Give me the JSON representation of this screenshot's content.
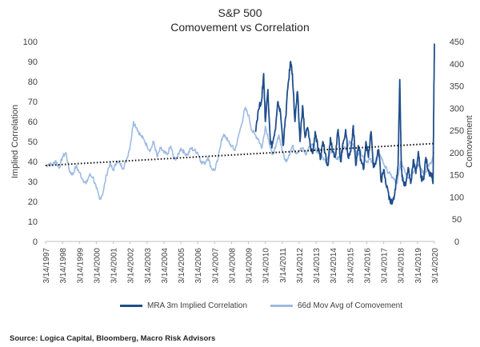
{
  "chart_data": {
    "type": "line",
    "title": "S&P 500",
    "subtitle": "Comovement vs Correlation",
    "ylabel_left": "Implied Correlation",
    "ylabel_right": "Comovement",
    "ylim_left": [
      0,
      100
    ],
    "ylim_right": [
      0,
      450
    ],
    "yticks_left": [
      0,
      10,
      20,
      30,
      40,
      50,
      60,
      70,
      80,
      90,
      100
    ],
    "yticks_right": [
      0,
      50,
      100,
      150,
      200,
      250,
      300,
      350,
      400,
      450
    ],
    "xticks": [
      "3/14/1997",
      "3/14/1998",
      "3/14/1999",
      "3/14/2000",
      "3/14/2001",
      "3/14/2002",
      "3/14/2003",
      "3/14/2004",
      "3/14/2005",
      "3/14/2006",
      "3/14/2007",
      "3/14/2008",
      "3/14/2009",
      "3/14/2010",
      "3/14/2011",
      "3/14/2012",
      "3/14/2013",
      "3/14/2014",
      "3/14/2015",
      "3/14/2016",
      "3/14/2017",
      "3/14/2018",
      "3/14/2019",
      "3/14/2020"
    ],
    "xrange": [
      1997.2,
      2020.2
    ],
    "grid": false,
    "legend_position": "bottom",
    "series": [
      {
        "name": "66d Mov Avg of Comovement",
        "axis": "right",
        "color": "#9dbbe3",
        "x": [
          1997.2,
          1997.4,
          1997.6,
          1997.8,
          1998.0,
          1998.2,
          1998.4,
          1998.6,
          1998.8,
          1999.0,
          1999.2,
          1999.4,
          1999.6,
          1999.8,
          2000.0,
          2000.2,
          2000.4,
          2000.6,
          2000.8,
          2001.0,
          2001.2,
          2001.4,
          2001.6,
          2001.8,
          2002.0,
          2002.2,
          2002.4,
          2002.6,
          2002.8,
          2003.0,
          2003.2,
          2003.4,
          2003.6,
          2003.8,
          2004.0,
          2004.2,
          2004.4,
          2004.6,
          2004.8,
          2005.0,
          2005.2,
          2005.4,
          2005.6,
          2005.8,
          2006.0,
          2006.2,
          2006.4,
          2006.6,
          2006.8,
          2007.0,
          2007.2,
          2007.4,
          2007.6,
          2007.8,
          2008.0,
          2008.2,
          2008.4,
          2008.6,
          2008.8,
          2009.0,
          2009.2,
          2009.4,
          2009.6,
          2009.8,
          2010.0,
          2010.2,
          2010.4,
          2010.6,
          2010.8,
          2011.0,
          2011.2,
          2011.4,
          2011.6,
          2011.8,
          2012.0,
          2012.2,
          2012.4,
          2012.6,
          2012.8,
          2013.0,
          2013.2,
          2013.4,
          2013.6,
          2013.8,
          2014.0,
          2014.2,
          2014.4,
          2014.6,
          2014.8,
          2015.0,
          2015.2,
          2015.4,
          2015.6,
          2015.8,
          2016.0,
          2016.2,
          2016.4,
          2016.6,
          2016.8,
          2017.0,
          2017.2,
          2017.4,
          2017.6,
          2017.8,
          2018.0,
          2018.2,
          2018.4,
          2018.6,
          2018.8,
          2019.0,
          2019.2,
          2019.4,
          2019.6,
          2019.8,
          2020.0,
          2020.2
        ],
        "values": [
          170,
          175,
          172,
          182,
          165,
          190,
          200,
          160,
          150,
          170,
          155,
          140,
          130,
          150,
          145,
          120,
          95,
          110,
          150,
          175,
          160,
          180,
          175,
          165,
          185,
          215,
          270,
          255,
          240,
          230,
          215,
          205,
          225,
          190,
          210,
          200,
          195,
          215,
          185,
          190,
          210,
          200,
          195,
          210,
          205,
          200,
          180,
          175,
          190,
          165,
          160,
          185,
          230,
          240,
          225,
          215,
          205,
          235,
          265,
          300,
          285,
          250,
          240,
          230,
          210,
          260,
          230,
          195,
          210,
          240,
          205,
          180,
          195,
          215,
          200,
          205,
          210,
          195,
          215,
          220,
          205,
          200,
          190,
          180,
          195,
          205,
          185,
          190,
          215,
          210,
          225,
          215,
          195,
          205,
          190,
          180,
          185,
          170,
          190,
          195,
          175,
          160,
          150,
          140,
          130,
          180,
          165,
          145,
          150,
          160,
          175,
          165,
          150,
          170,
          175,
          200
        ]
      },
      {
        "name": "MRA 3m Implied Correlation",
        "axis": "left",
        "color": "#1f4e8c",
        "x": [
          2009.6,
          2009.8,
          2010.0,
          2010.1,
          2010.2,
          2010.35,
          2010.5,
          2010.6,
          2010.8,
          2010.95,
          2011.1,
          2011.25,
          2011.4,
          2011.55,
          2011.7,
          2011.8,
          2011.95,
          2012.1,
          2012.25,
          2012.4,
          2012.55,
          2012.7,
          2012.85,
          2013.0,
          2013.15,
          2013.3,
          2013.45,
          2013.6,
          2013.75,
          2013.9,
          2014.05,
          2014.2,
          2014.35,
          2014.5,
          2014.65,
          2014.8,
          2014.95,
          2015.1,
          2015.25,
          2015.4,
          2015.55,
          2015.7,
          2015.85,
          2016.0,
          2016.15,
          2016.3,
          2016.45,
          2016.6,
          2016.75,
          2016.9,
          2017.05,
          2017.2,
          2017.35,
          2017.5,
          2017.6,
          2017.75,
          2017.9,
          2018.05,
          2018.15,
          2018.25,
          2018.35,
          2018.5,
          2018.65,
          2018.8,
          2018.95,
          2019.1,
          2019.25,
          2019.4,
          2019.55,
          2019.7,
          2019.85,
          2019.95,
          2020.05,
          2020.12,
          2020.16,
          2020.2
        ],
        "values": [
          55,
          66,
          72,
          84,
          60,
          76,
          50,
          48,
          56,
          70,
          64,
          48,
          62,
          79,
          90,
          84,
          60,
          75,
          50,
          68,
          52,
          57,
          48,
          44,
          55,
          47,
          41,
          50,
          44,
          38,
          52,
          45,
          43,
          56,
          40,
          49,
          56,
          42,
          45,
          58,
          38,
          48,
          41,
          36,
          50,
          42,
          55,
          37,
          40,
          46,
          30,
          36,
          28,
          23,
          19,
          21,
          26,
          38,
          81,
          36,
          30,
          28,
          37,
          29,
          41,
          34,
          45,
          32,
          31,
          42,
          35,
          33,
          34,
          29,
          67,
          99
        ]
      },
      {
        "name": "Trend",
        "axis": "left",
        "style": "dotted",
        "color": "#111111",
        "x": [
          1997.2,
          2020.2
        ],
        "values": [
          38,
          49
        ]
      }
    ]
  },
  "source": "Source: Logica Capital, Bloomberg, Macro Risk Advisors"
}
